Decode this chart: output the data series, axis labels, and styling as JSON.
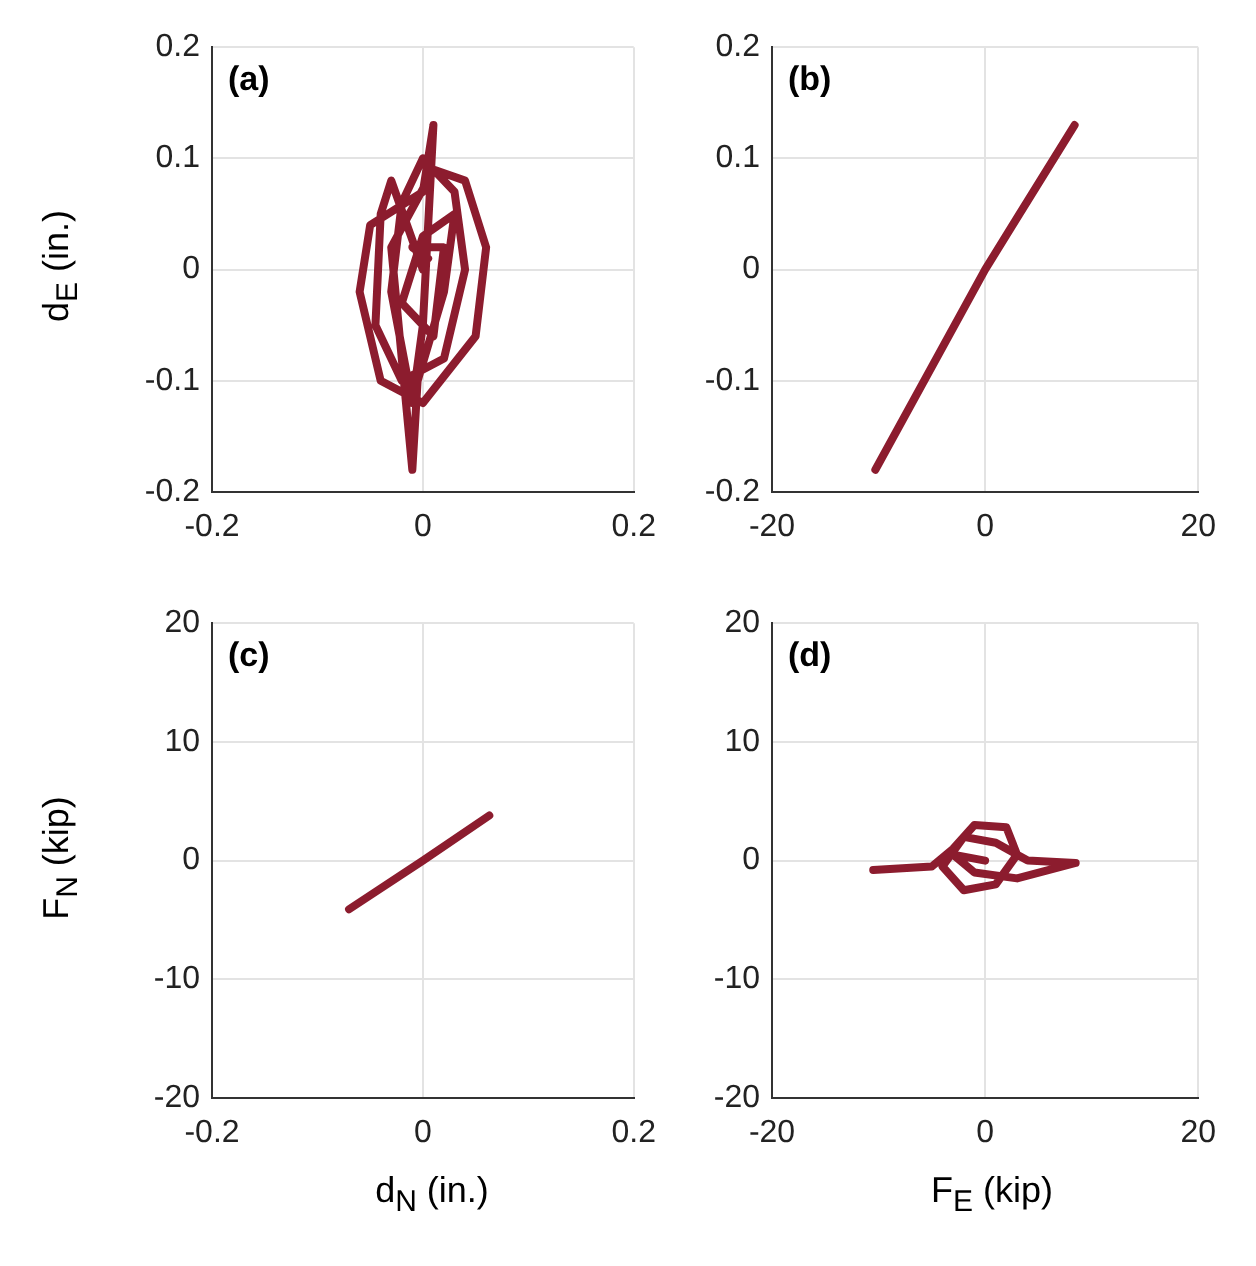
{
  "chart_data": [
    {
      "type": "line",
      "ylabel": "d$_{E}$ (in.)",
      "annotations": [
        "(a)"
      ],
      "xlim": [
        -0.2,
        0.2
      ],
      "xticks": [
        -0.2,
        0,
        0.2
      ],
      "ylim": [
        -0.2,
        0.2
      ],
      "yticks": [
        -0.2,
        -0.1,
        0,
        0.1,
        0.2
      ],
      "grid": true,
      "marker": "none",
      "line_style": "solid",
      "series": [
        {
          "color": "#8c1c2e",
          "x": [
            0,
            -0.03,
            -0.04,
            -0.045,
            -0.02,
            0.02,
            0.04,
            0.03,
            0,
            -0.02,
            -0.03,
            -0.01,
            0,
            0.01,
            0,
            -0.05,
            -0.06,
            -0.04,
            0,
            0.05,
            0.06,
            0.04,
            0.01,
            -0.03,
            -0.01,
            -0.005,
            0.02,
            0.03,
            0,
            -0.02,
            0.01,
            0.02,
            -0.01,
            0.005
          ],
          "values": [
            0,
            0.08,
            0.05,
            -0.05,
            -0.1,
            -0.08,
            0,
            0.07,
            0.1,
            0.06,
            -0.02,
            -0.12,
            -0.05,
            0.13,
            0.07,
            0.04,
            -0.02,
            -0.1,
            -0.12,
            -0.06,
            0.02,
            0.08,
            0.09,
            0.02,
            -0.18,
            -0.1,
            -0.02,
            0.05,
            0.03,
            -0.03,
            -0.06,
            0.02,
            0.02,
            0.01
          ]
        }
      ]
    },
    {
      "type": "line",
      "annotations": [
        "(b)"
      ],
      "xlim": [
        -20,
        20
      ],
      "xticks": [
        -20,
        0,
        20
      ],
      "ylim": [
        -0.2,
        0.2
      ],
      "yticks": [
        -0.2,
        -0.1,
        0,
        0.1,
        0.2
      ],
      "grid": true,
      "marker": "none",
      "line_style": "solid",
      "series": [
        {
          "color": "#8c1c2e",
          "x": [
            -10.3,
            0,
            8.4
          ],
          "values": [
            -0.18,
            0,
            0.13
          ]
        }
      ]
    },
    {
      "type": "line",
      "xlabel": "d$_{N}$ (in.)",
      "ylabel": "F$_{N}$ (kip)",
      "annotations": [
        "(c)"
      ],
      "xlim": [
        -0.2,
        0.2
      ],
      "xticks": [
        -0.2,
        0,
        0.2
      ],
      "ylim": [
        -20,
        20
      ],
      "yticks": [
        -20,
        -10,
        0,
        10,
        20
      ],
      "grid": true,
      "marker": "none",
      "line_style": "solid",
      "series": [
        {
          "color": "#8c1c2e",
          "x": [
            -0.07,
            0,
            0.063
          ],
          "values": [
            -4.1,
            0,
            3.8
          ]
        }
      ]
    },
    {
      "type": "line",
      "xlabel": "F$_{E}$ (kip)",
      "annotations": [
        "(d)"
      ],
      "xlim": [
        -20,
        20
      ],
      "xticks": [
        -20,
        0,
        20
      ],
      "ylim": [
        -20,
        20
      ],
      "yticks": [
        -20,
        -10,
        0,
        10,
        20
      ],
      "grid": true,
      "marker": "none",
      "line_style": "solid",
      "series": [
        {
          "color": "#8c1c2e",
          "x": [
            -10.5,
            -5,
            -3,
            -1,
            2,
            3,
            1,
            -2,
            -4,
            -2,
            1,
            4,
            8.5,
            3,
            -1,
            -3,
            0
          ],
          "values": [
            -0.8,
            -0.5,
            1,
            3,
            2.8,
            0.5,
            -2,
            -2.5,
            -0.5,
            2,
            1.5,
            0,
            -0.2,
            -1.5,
            -1,
            0.5,
            0
          ]
        }
      ]
    }
  ]
}
